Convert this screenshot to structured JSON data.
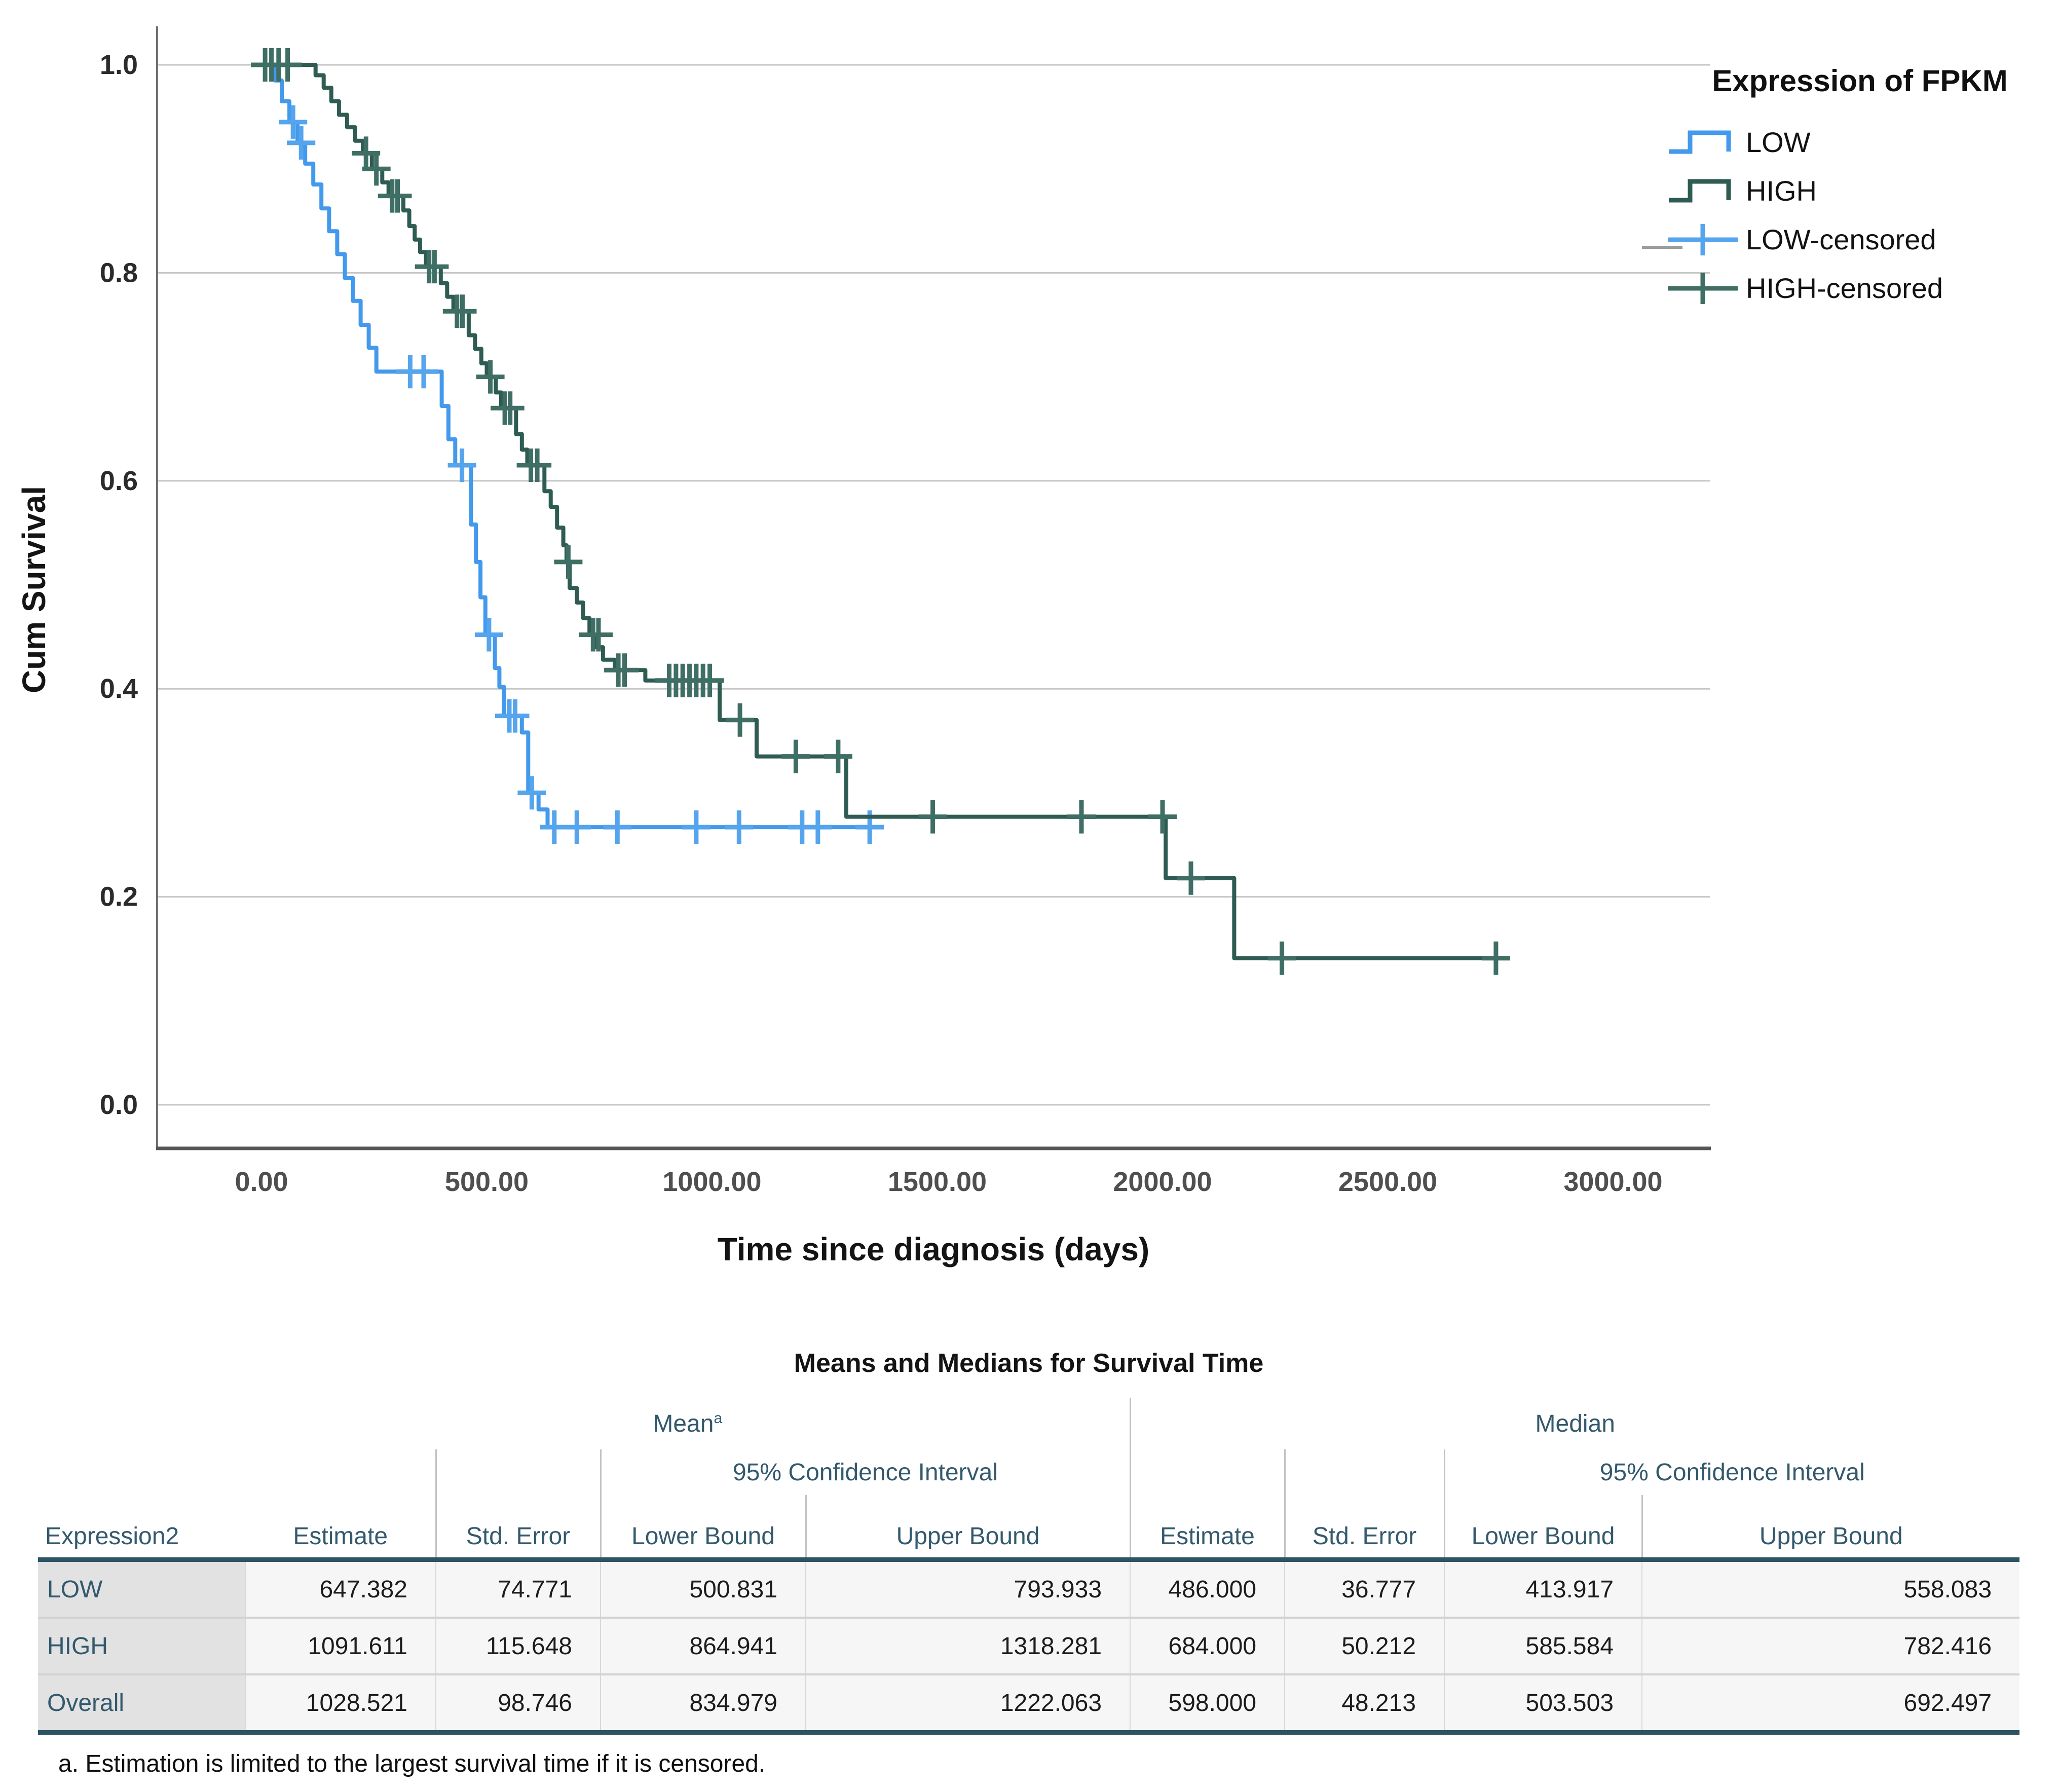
{
  "chart_data": {
    "type": "line",
    "subtype": "kaplan-meier-step",
    "title": "",
    "xlabel": "Time since diagnosis (days)",
    "ylabel": "Cum Survival",
    "xlim": [
      -230,
      3215
    ],
    "ylim": [
      -0.042,
      1.037
    ],
    "x_ticks": [
      0,
      500,
      1000,
      1500,
      2000,
      2500,
      3000
    ],
    "x_tick_labels": [
      "0.00",
      "500.00",
      "1000.00",
      "1500.00",
      "2000.00",
      "2500.00",
      "3000.00"
    ],
    "y_ticks": [
      0.0,
      0.2,
      0.4,
      0.6,
      0.8,
      1.0
    ],
    "y_tick_labels": [
      "0.0",
      "0.2",
      "0.4",
      "0.6",
      "0.8",
      "1.0"
    ],
    "grid": "horizontal",
    "legend_position": "right",
    "series": [
      {
        "name": "LOW",
        "color": "#4399ec",
        "censor_color": "#55a4ee",
        "steps": [
          [
            0,
            1.0
          ],
          [
            30,
            0.985
          ],
          [
            45,
            0.965
          ],
          [
            62,
            0.945
          ],
          [
            80,
            0.925
          ],
          [
            97,
            0.905
          ],
          [
            115,
            0.885
          ],
          [
            133,
            0.862
          ],
          [
            150,
            0.84
          ],
          [
            168,
            0.818
          ],
          [
            185,
            0.795
          ],
          [
            203,
            0.773
          ],
          [
            220,
            0.75
          ],
          [
            238,
            0.728
          ],
          [
            255,
            0.705
          ],
          [
            400,
            0.672
          ],
          [
            415,
            0.64
          ],
          [
            430,
            0.615
          ],
          [
            465,
            0.558
          ],
          [
            476,
            0.522
          ],
          [
            486,
            0.488
          ],
          [
            497,
            0.452
          ],
          [
            518,
            0.42
          ],
          [
            528,
            0.402
          ],
          [
            538,
            0.374
          ],
          [
            578,
            0.358
          ],
          [
            592,
            0.3
          ],
          [
            615,
            0.284
          ],
          [
            635,
            0.267
          ],
          [
            1356,
            0.267
          ]
        ],
        "censored": [
          [
            70,
            0.945
          ],
          [
            88,
            0.925
          ],
          [
            330,
            0.705
          ],
          [
            360,
            0.705
          ],
          [
            445,
            0.615
          ],
          [
            505,
            0.452
          ],
          [
            550,
            0.374
          ],
          [
            563,
            0.374
          ],
          [
            600,
            0.3
          ],
          [
            650,
            0.267
          ],
          [
            700,
            0.267
          ],
          [
            790,
            0.267
          ],
          [
            965,
            0.267
          ],
          [
            1060,
            0.267
          ],
          [
            1200,
            0.267
          ],
          [
            1235,
            0.267
          ],
          [
            1350,
            0.267
          ]
        ]
      },
      {
        "name": "HIGH",
        "color": "#2e5b52",
        "censor_color": "#3f6e65",
        "steps": [
          [
            0,
            1.0
          ],
          [
            120,
            0.99
          ],
          [
            138,
            0.978
          ],
          [
            155,
            0.965
          ],
          [
            172,
            0.952
          ],
          [
            190,
            0.94
          ],
          [
            208,
            0.927
          ],
          [
            225,
            0.915
          ],
          [
            245,
            0.9
          ],
          [
            268,
            0.887
          ],
          [
            282,
            0.874
          ],
          [
            315,
            0.86
          ],
          [
            328,
            0.845
          ],
          [
            340,
            0.832
          ],
          [
            352,
            0.82
          ],
          [
            365,
            0.806
          ],
          [
            398,
            0.79
          ],
          [
            412,
            0.777
          ],
          [
            426,
            0.763
          ],
          [
            460,
            0.74
          ],
          [
            474,
            0.727
          ],
          [
            488,
            0.713
          ],
          [
            500,
            0.7
          ],
          [
            520,
            0.685
          ],
          [
            532,
            0.67
          ],
          [
            565,
            0.645
          ],
          [
            578,
            0.63
          ],
          [
            590,
            0.615
          ],
          [
            628,
            0.59
          ],
          [
            642,
            0.575
          ],
          [
            656,
            0.555
          ],
          [
            670,
            0.538
          ],
          [
            677,
            0.522
          ],
          [
            684,
            0.497
          ],
          [
            700,
            0.483
          ],
          [
            714,
            0.468
          ],
          [
            728,
            0.452
          ],
          [
            742,
            0.44
          ],
          [
            758,
            0.428
          ],
          [
            784,
            0.418
          ],
          [
            852,
            0.408
          ],
          [
            1017,
            0.37
          ],
          [
            1099,
            0.335
          ],
          [
            1298,
            0.277
          ],
          [
            2007,
            0.218
          ],
          [
            2159,
            0.141
          ],
          [
            2749,
            0.141
          ]
        ],
        "censored": [
          [
            8,
            1.0
          ],
          [
            22,
            1.0
          ],
          [
            38,
            1.0
          ],
          [
            58,
            1.0
          ],
          [
            232,
            0.915
          ],
          [
            255,
            0.9
          ],
          [
            290,
            0.874
          ],
          [
            302,
            0.874
          ],
          [
            372,
            0.806
          ],
          [
            384,
            0.806
          ],
          [
            434,
            0.763
          ],
          [
            446,
            0.763
          ],
          [
            508,
            0.7
          ],
          [
            540,
            0.67
          ],
          [
            552,
            0.67
          ],
          [
            598,
            0.615
          ],
          [
            612,
            0.615
          ],
          [
            681,
            0.522
          ],
          [
            736,
            0.452
          ],
          [
            748,
            0.452
          ],
          [
            792,
            0.418
          ],
          [
            806,
            0.418
          ],
          [
            905,
            0.408
          ],
          [
            920,
            0.408
          ],
          [
            935,
            0.408
          ],
          [
            950,
            0.408
          ],
          [
            965,
            0.408
          ],
          [
            980,
            0.408
          ],
          [
            995,
            0.408
          ],
          [
            1062,
            0.37
          ],
          [
            1186,
            0.335
          ],
          [
            1280,
            0.335
          ],
          [
            1490,
            0.277
          ],
          [
            1820,
            0.277
          ],
          [
            2000,
            0.277
          ],
          [
            2063,
            0.218
          ],
          [
            2265,
            0.141
          ],
          [
            2740,
            0.141
          ]
        ]
      }
    ]
  },
  "legend": {
    "title": "Expression of FPKM",
    "entries": [
      {
        "label": "LOW",
        "type": "step",
        "color": "#4399ec"
      },
      {
        "label": "HIGH",
        "type": "step",
        "color": "#2e5b52"
      },
      {
        "label": "LOW-censored",
        "type": "censor",
        "color": "#55a4ee"
      },
      {
        "label": "HIGH-censored",
        "type": "censor",
        "color": "#3f6e65"
      }
    ]
  },
  "table": {
    "title": "Means and Medians for Survival Time",
    "mean_label": "Mean",
    "mean_sup": "a",
    "median_label": "Median",
    "ci_label": "95% Confidence Interval",
    "stub_label": "Expression2",
    "col_labels": [
      "Estimate",
      "Std. Error",
      "Lower Bound",
      "Upper Bound"
    ],
    "rows": [
      {
        "label": "LOW",
        "mean": [
          "647.382",
          "74.771",
          "500.831",
          "793.933"
        ],
        "median": [
          "486.000",
          "36.777",
          "413.917",
          "558.083"
        ]
      },
      {
        "label": "HIGH",
        "mean": [
          "1091.611",
          "115.648",
          "864.941",
          "1318.281"
        ],
        "median": [
          "684.000",
          "50.212",
          "585.584",
          "782.416"
        ]
      },
      {
        "label": "Overall",
        "mean": [
          "1028.521",
          "98.746",
          "834.979",
          "1222.063"
        ],
        "median": [
          "598.000",
          "48.213",
          "503.503",
          "692.497"
        ]
      }
    ],
    "footnote": "a. Estimation is limited to the largest survival time if it is censored."
  }
}
